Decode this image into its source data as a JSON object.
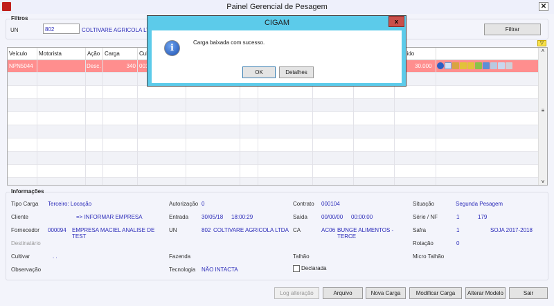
{
  "window": {
    "title": "Painel Gerencial de Pesagem",
    "close": "✕"
  },
  "filters": {
    "title": "Filtros",
    "un_label": "UN",
    "un_value": "802",
    "un_name": "COLTIVARE AGRICOLA LTDA",
    "filter_button": "Filtrar"
  },
  "grid": {
    "columns": [
      "Veículo",
      "Motorista",
      "Ação",
      "Carga",
      "Cul",
      "",
      "",
      "",
      "",
      "",
      "Líquido"
    ],
    "rows": [
      {
        "veiculo": "NPN5044",
        "motorista": "",
        "acao": "Desc.",
        "carga": "340",
        "cul": "001",
        "liquido": "30.000"
      }
    ],
    "row_icons": [
      "info-icon",
      "table-icon",
      "truck-remove-icon",
      "truck-warning-icon",
      "truck-warning-icon",
      "truck-forward-icon",
      "tree-icon",
      "document-icon",
      "document-icon",
      "print-icon"
    ],
    "selected_row_color": "#ff8e8e"
  },
  "info": {
    "title": "Informações",
    "tipo_carga": {
      "label": "Tipo Carga",
      "value": "Terceiro: Locação"
    },
    "autorizacao": {
      "label": "Autorização",
      "value": "0"
    },
    "contrato": {
      "label": "Contrato",
      "value": "000104"
    },
    "situacao": {
      "label": "Situação",
      "value": "Segunda Pesagem"
    },
    "cliente": {
      "label": "Cliente",
      "value": "=> INFORMAR EMPRESA"
    },
    "entrada": {
      "label": "Entrada",
      "date": "30/05/18",
      "time": "18:00:29"
    },
    "saida": {
      "label": "Saída",
      "date": "00/00/00",
      "time": "00:00:00"
    },
    "serie_nf": {
      "label": "Série / NF",
      "serie": "1",
      "nf": "179"
    },
    "fornecedor": {
      "label": "Fornecedor",
      "code": "000094",
      "name": "EMPRESA MACIEL ANALISE DE TEST"
    },
    "un": {
      "label": "UN",
      "code": "802",
      "name": "COLTIVARE AGRICOLA LTDA"
    },
    "ca": {
      "label": "CA",
      "code": "AC06",
      "name": "BUNGE ALIMENTOS - TERCE"
    },
    "safra": {
      "label": "Safra",
      "code": "1",
      "name": "SOJA 2017-2018"
    },
    "destinatario": {
      "label": "Destinatário"
    },
    "rotacao": {
      "label": "Rotação",
      "value": "0"
    },
    "cultivar": {
      "label": "Cultivar",
      "value": ". ."
    },
    "fazenda": {
      "label": "Fazenda"
    },
    "talhao": {
      "label": "Talhão"
    },
    "micro_talhao": {
      "label": "Micro Talhão"
    },
    "observacao": {
      "label": "Observação"
    },
    "tecnologia": {
      "label": "Tecnologia",
      "value": "NÃO INTACTA"
    },
    "declarada": {
      "label": "Declarada",
      "checked": false
    }
  },
  "buttons": {
    "log": "Log alteração",
    "arquivo": "Arquivo",
    "nova": "Nova Carga",
    "modificar": "Modificar Carga",
    "alterar": "Alterar Modelo",
    "sair": "Sair"
  },
  "dialog": {
    "title": "CIGAM",
    "message": "Carga baixada com sucesso.",
    "ok": "OK",
    "details": "Detalhes",
    "close": "x"
  }
}
